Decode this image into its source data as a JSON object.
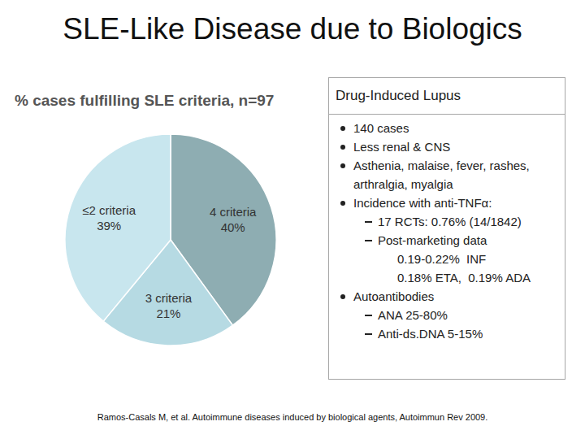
{
  "slide": {
    "title": "SLE-Like Disease due to Biologics",
    "citation": "Ramos-Casals M, et al. Autoimmune diseases induced by biological agents, Autoimmun Rev 2009.",
    "box": {
      "title": "Drug-Induced Lupus",
      "items": [
        {
          "text": "140 cases"
        },
        {
          "text": "Less renal & CNS"
        },
        {
          "text": "Asthenia, malaise, fever, rashes, arthralgia, myalgia"
        },
        {
          "text": "Incidence with anti-TNFα:",
          "sub": [
            {
              "text": "17 RCTs: 0.76% (14/1842)"
            },
            {
              "text": "Post-marketing data",
              "lines": [
                "0.19-0.22%  INF",
                "0.18% ETA,  0.19% ADA"
              ]
            }
          ]
        },
        {
          "text": "Autoantibodies",
          "sub": [
            {
              "text": "ANA 25-80%"
            },
            {
              "text": "Anti-ds.DNA 5-15%"
            }
          ]
        }
      ]
    }
  },
  "chart_data": {
    "type": "pie",
    "title": "% cases fulfilling SLE criteria, n=97",
    "categories": [
      "4 criteria",
      "3 criteria",
      "≤2 criteria"
    ],
    "values": [
      40,
      21,
      39
    ],
    "value_labels": [
      "40%",
      "21%",
      "39%"
    ],
    "colors": [
      "#8eadb2",
      "#b6dae3",
      "#c8e6ee"
    ],
    "data_labels": true
  }
}
